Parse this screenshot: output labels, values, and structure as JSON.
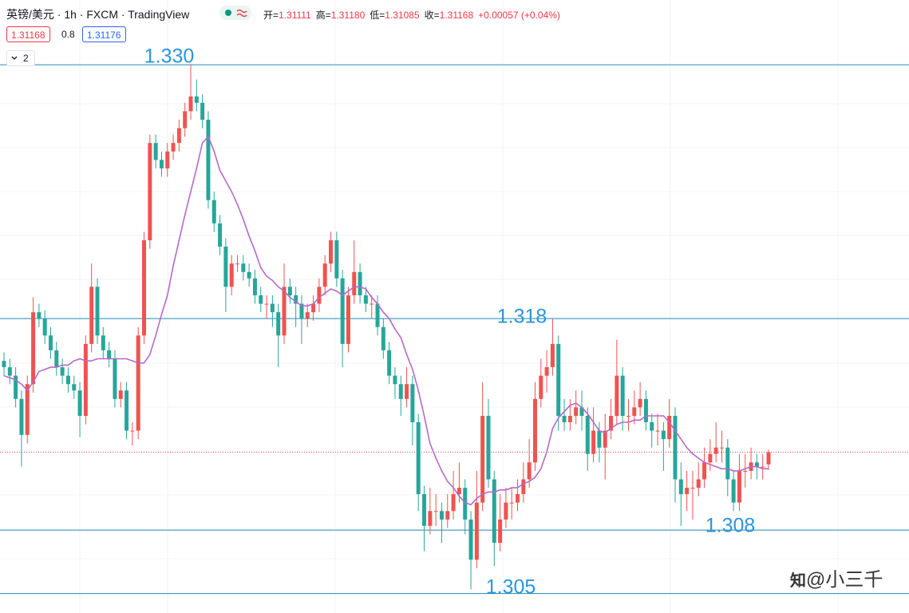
{
  "header": {
    "symbol": "英镑/美元 · 1h · FXCM · TradingView",
    "ohlc": [
      {
        "label": "开=",
        "value": "1.31111"
      },
      {
        "label": "高=",
        "value": "1.31180"
      },
      {
        "label": "低=",
        "value": "1.31085"
      },
      {
        "label": "收=",
        "value": "1.31168"
      }
    ],
    "change": "+0.00057 (+0.04%)",
    "bid": "1.31168",
    "spread": "0.8",
    "ask": "1.31176",
    "collapse": "2"
  },
  "chart_data": {
    "type": "candlestick",
    "ylim": [
      1.30408,
      1.33306
    ],
    "up_color": "#ef5350",
    "down_color": "#26a69a",
    "open": [
      1.316,
      1.3157,
      1.3153,
      1.3142,
      1.3125,
      1.3149,
      1.3183,
      1.318,
      1.3172,
      1.3165,
      1.3157,
      1.3153,
      1.3149,
      1.3146,
      1.3134,
      1.3168,
      1.3195,
      1.3172,
      1.3165,
      1.3161,
      1.3142,
      1.3146,
      1.3127,
      1.3127,
      1.3172,
      1.3217,
      1.3263,
      1.3255,
      1.3251,
      1.3259,
      1.3263,
      1.327,
      1.3278,
      1.3285,
      1.3282,
      1.3274,
      1.3236,
      1.3225,
      1.3214,
      1.3195,
      1.3206,
      1.3206,
      1.3202,
      1.3199,
      1.3191,
      1.3187,
      1.3187,
      1.3183,
      1.3172,
      1.3195,
      1.3191,
      1.3187,
      1.318,
      1.3183,
      1.3187,
      1.3195,
      1.3206,
      1.3217,
      1.3199,
      1.3168,
      1.3191,
      1.3202,
      1.3191,
      1.3187,
      1.3187,
      1.3176,
      1.3165,
      1.3153,
      1.3149,
      1.3142,
      1.3149,
      1.3131,
      1.3097,
      1.3082,
      1.3089,
      1.3089,
      1.3085,
      1.3089,
      1.3097,
      1.31,
      1.3085,
      1.3066,
      1.3093,
      1.3134,
      1.3104,
      1.3074,
      1.3085,
      1.3093,
      1.3093,
      1.3097,
      1.3104,
      1.3112,
      1.3142,
      1.3153,
      1.3157,
      1.3168,
      1.3134,
      1.3131,
      1.3134,
      1.3138,
      1.3134,
      1.3116,
      1.3127,
      1.3119,
      1.3127,
      1.3134,
      1.3153,
      1.3134,
      1.3134,
      1.3138,
      1.3142,
      1.3131,
      1.3127,
      1.3127,
      1.3123,
      1.3134,
      1.3104,
      1.3097,
      1.31,
      1.31,
      1.3104,
      1.3112,
      1.3116,
      1.3119,
      1.3119,
      1.3104,
      1.3093,
      1.3108,
      1.3108,
      1.3112,
      1.311,
      1.31111
    ],
    "high": [
      1.3164,
      1.3161,
      1.3157,
      1.3146,
      1.3153,
      1.319,
      1.3187,
      1.3184,
      1.3176,
      1.3169,
      1.3161,
      1.3157,
      1.3153,
      1.315,
      1.3172,
      1.3206,
      1.3199,
      1.3176,
      1.3169,
      1.3165,
      1.315,
      1.315,
      1.3131,
      1.3176,
      1.3221,
      1.3267,
      1.3267,
      1.3259,
      1.3263,
      1.3267,
      1.3274,
      1.3282,
      1.33,
      1.3293,
      1.3286,
      1.3278,
      1.324,
      1.3229,
      1.3218,
      1.321,
      1.321,
      1.321,
      1.3206,
      1.3203,
      1.3195,
      1.3191,
      1.3191,
      1.3187,
      1.3206,
      1.3199,
      1.3195,
      1.3191,
      1.3187,
      1.3191,
      1.3199,
      1.321,
      1.3221,
      1.3221,
      1.3203,
      1.3195,
      1.3217,
      1.3206,
      1.3195,
      1.3191,
      1.3191,
      1.318,
      1.3169,
      1.3157,
      1.3153,
      1.3157,
      1.3153,
      1.3135,
      1.3101,
      1.31,
      1.3097,
      1.3093,
      1.3097,
      1.3108,
      1.3112,
      1.3104,
      1.3089,
      1.3108,
      1.315,
      1.3142,
      1.3108,
      1.3097,
      1.31,
      1.31,
      1.3104,
      1.3112,
      1.3123,
      1.315,
      1.3161,
      1.3165,
      1.318,
      1.3172,
      1.3142,
      1.3142,
      1.3146,
      1.3146,
      1.3138,
      1.3138,
      1.3131,
      1.3135,
      1.3142,
      1.317,
      1.3157,
      1.3142,
      1.3146,
      1.315,
      1.3146,
      1.3135,
      1.3135,
      1.3131,
      1.3142,
      1.3138,
      1.3112,
      1.3108,
      1.3108,
      1.3112,
      1.3119,
      1.3123,
      1.3131,
      1.3127,
      1.3123,
      1.3108,
      1.3116,
      1.3116,
      1.3119,
      1.3116,
      1.3116,
      1.3118
    ],
    "low": [
      1.3153,
      1.3149,
      1.3138,
      1.311,
      1.3121,
      1.3145,
      1.3176,
      1.3168,
      1.3161,
      1.3153,
      1.3149,
      1.3145,
      1.3142,
      1.3124,
      1.313,
      1.3164,
      1.3168,
      1.3161,
      1.3157,
      1.3138,
      1.3138,
      1.3123,
      1.312,
      1.3123,
      1.3168,
      1.3213,
      1.3251,
      1.3247,
      1.3247,
      1.3255,
      1.3259,
      1.3266,
      1.3274,
      1.3278,
      1.327,
      1.3232,
      1.3221,
      1.321,
      1.3183,
      1.3191,
      1.3202,
      1.3198,
      1.3195,
      1.3187,
      1.3183,
      1.318,
      1.3176,
      1.3157,
      1.3168,
      1.3187,
      1.3176,
      1.3168,
      1.3176,
      1.3179,
      1.3183,
      1.3191,
      1.3202,
      1.3195,
      1.3157,
      1.3164,
      1.3187,
      1.3187,
      1.3183,
      1.318,
      1.3172,
      1.3161,
      1.3149,
      1.3142,
      1.3134,
      1.3138,
      1.312,
      1.3089,
      1.307,
      1.3078,
      1.3082,
      1.3074,
      1.3081,
      1.3085,
      1.3093,
      1.3078,
      1.3052,
      1.3062,
      1.3089,
      1.31,
      1.3063,
      1.307,
      1.3081,
      1.3085,
      1.3089,
      1.3093,
      1.31,
      1.3108,
      1.3138,
      1.3145,
      1.3153,
      1.3127,
      1.3127,
      1.3127,
      1.313,
      1.3127,
      1.3108,
      1.3112,
      1.3112,
      1.3104,
      1.3123,
      1.313,
      1.3127,
      1.3127,
      1.313,
      1.3134,
      1.3127,
      1.3119,
      1.312,
      1.3108,
      1.3119,
      1.3093,
      1.3082,
      1.3089,
      1.3085,
      1.3096,
      1.31,
      1.3108,
      1.3112,
      1.3112,
      1.3096,
      1.3089,
      1.3089,
      1.31,
      1.3104,
      1.3104,
      1.3104,
      1.31085
    ],
    "close": [
      1.3157,
      1.3153,
      1.3142,
      1.3125,
      1.3149,
      1.3183,
      1.318,
      1.3172,
      1.3165,
      1.3157,
      1.3153,
      1.3149,
      1.3146,
      1.3134,
      1.3168,
      1.3195,
      1.3172,
      1.3165,
      1.3161,
      1.3142,
      1.3146,
      1.3127,
      1.3127,
      1.3172,
      1.3217,
      1.3263,
      1.3255,
      1.3251,
      1.3259,
      1.3263,
      1.327,
      1.3278,
      1.3285,
      1.3282,
      1.3274,
      1.3236,
      1.3225,
      1.3214,
      1.3195,
      1.3206,
      1.3206,
      1.3202,
      1.3199,
      1.3191,
      1.3187,
      1.3187,
      1.3183,
      1.3172,
      1.3195,
      1.3191,
      1.3187,
      1.318,
      1.3183,
      1.3187,
      1.3195,
      1.3206,
      1.3217,
      1.3199,
      1.3168,
      1.3191,
      1.3202,
      1.3191,
      1.3187,
      1.3187,
      1.3176,
      1.3165,
      1.3153,
      1.3149,
      1.3142,
      1.3149,
      1.3131,
      1.3097,
      1.3082,
      1.3089,
      1.3089,
      1.3085,
      1.3089,
      1.3097,
      1.31,
      1.3085,
      1.3066,
      1.3093,
      1.3134,
      1.3104,
      1.3074,
      1.3085,
      1.3093,
      1.3093,
      1.3097,
      1.3104,
      1.3112,
      1.3142,
      1.3153,
      1.3157,
      1.3168,
      1.3134,
      1.3131,
      1.3134,
      1.3138,
      1.3134,
      1.3116,
      1.3127,
      1.3119,
      1.3127,
      1.3134,
      1.3153,
      1.3134,
      1.3134,
      1.3138,
      1.3142,
      1.3131,
      1.3127,
      1.3127,
      1.3123,
      1.3134,
      1.3104,
      1.3097,
      1.31,
      1.31,
      1.3104,
      1.3112,
      1.3116,
      1.3119,
      1.3119,
      1.3104,
      1.3093,
      1.3108,
      1.3108,
      1.3112,
      1.311,
      1.311,
      1.31168
    ],
    "moving_average": {
      "color": "#b768c9",
      "values": [
        1.3153,
        1.3152,
        1.3151,
        1.3149,
        1.3146,
        1.315,
        1.3155,
        1.3156,
        1.3157,
        1.3157,
        1.3158,
        1.3158,
        1.316,
        1.3161,
        1.316,
        1.316,
        1.3161,
        1.3161,
        1.3161,
        1.3161,
        1.3161,
        1.3161,
        1.316,
        1.3159,
        1.3159,
        1.3163,
        1.3172,
        1.3182,
        1.3191,
        1.3205,
        1.3217,
        1.3229,
        1.324,
        1.3251,
        1.3263,
        1.3266,
        1.3259,
        1.325,
        1.3245,
        1.324,
        1.3234,
        1.3227,
        1.3219,
        1.3212,
        1.3204,
        1.32,
        1.3198,
        1.3195,
        1.3193,
        1.319,
        1.3188,
        1.3186,
        1.3186,
        1.3187,
        1.319,
        1.3192,
        1.3194,
        1.3193,
        1.3191,
        1.3193,
        1.3195,
        1.3195,
        1.3194,
        1.319,
        1.3187,
        1.3183,
        1.318,
        1.3175,
        1.3171,
        1.3163,
        1.3156,
        1.3146,
        1.3134,
        1.3121,
        1.3114,
        1.3108,
        1.3103,
        1.31,
        1.3096,
        1.3093,
        1.3092,
        1.3095,
        1.3097,
        1.3098,
        1.3098,
        1.3099,
        1.3099,
        1.31,
        1.31,
        1.3102,
        1.3103,
        1.3105,
        1.3109,
        1.3117,
        1.3128,
        1.3133,
        1.3136,
        1.3139,
        1.314,
        1.3138,
        1.3135,
        1.3131,
        1.3127,
        1.3126,
        1.3128,
        1.313,
        1.3131,
        1.3131,
        1.3132,
        1.3132,
        1.3134,
        1.3134,
        1.3134,
        1.3134,
        1.3131,
        1.3127,
        1.3123,
        1.3119,
        1.3116,
        1.3114,
        1.3112,
        1.3111,
        1.311,
        1.3109,
        1.3109,
        1.3108,
        1.3108,
        1.3109,
        1.311,
        1.311,
        1.3109,
        1.3109
      ]
    },
    "level_color": "#1e8bb3",
    "level_label_color": "#2b95dc",
    "levels": [
      {
        "value": 1.33,
        "label": "1.330"
      },
      1.318,
      1.308,
      1.305
    ]
  },
  "watermark": {
    "logo": "知",
    "text": "@小三千"
  }
}
